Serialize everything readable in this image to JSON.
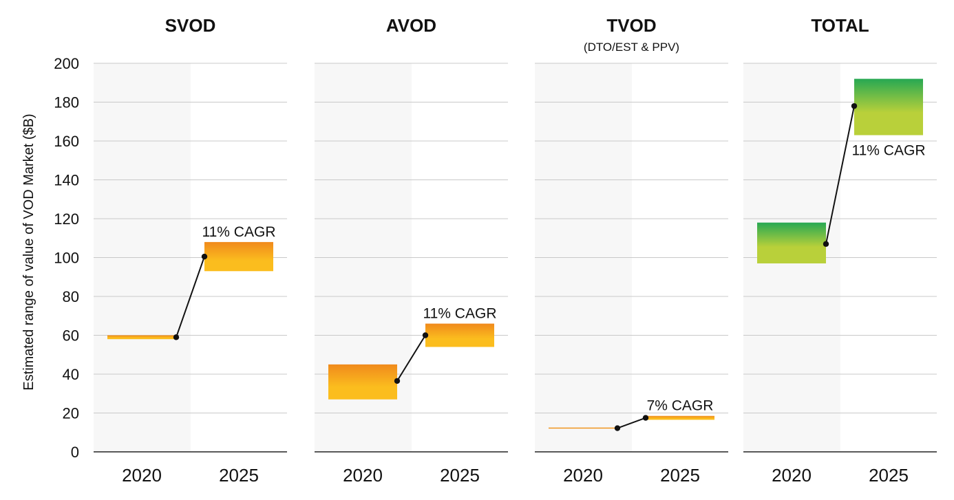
{
  "chart_data": {
    "type": "range",
    "ylabel": "Estimated range of value of VOD Market ($B)",
    "ylim": [
      0,
      200
    ],
    "yticks": [
      "0",
      "20",
      "40",
      "60",
      "80",
      "100",
      "120",
      "140",
      "160",
      "180",
      "200"
    ],
    "grid": true,
    "categories": [
      "2020",
      "2025"
    ],
    "colors": {
      "orange_top": "#f08a1c",
      "orange_bottom": "#fbbd1e",
      "green_top": "#27a853",
      "green_bottom": "#b9d03a",
      "tvod_line": "#f0941c",
      "shade": "#f7f7f7",
      "grid": "#c8c8c8",
      "connector": "#111111"
    },
    "panels": [
      {
        "title": "SVOD",
        "subtitle": "",
        "palette": "orange",
        "ranges": [
          {
            "year": "2020",
            "low": 58,
            "high": 60,
            "point": 59
          },
          {
            "year": "2025",
            "low": 93,
            "high": 108,
            "point": 100.5
          }
        ],
        "cagr_label": "11% CAGR",
        "cagr_position": "above"
      },
      {
        "title": "AVOD",
        "subtitle": "",
        "palette": "orange",
        "ranges": [
          {
            "year": "2020",
            "low": 27,
            "high": 45,
            "point": 36.5
          },
          {
            "year": "2025",
            "low": 54,
            "high": 66,
            "point": 60
          }
        ],
        "cagr_label": "11% CAGR",
        "cagr_position": "above"
      },
      {
        "title": "TVOD",
        "subtitle": "(DTO/EST & PPV)",
        "palette": "orange",
        "ranges": [
          {
            "year": "2020",
            "low": 12,
            "high": 12.5,
            "point": 12.2
          },
          {
            "year": "2025",
            "low": 16.5,
            "high": 18.5,
            "point": 17.5
          }
        ],
        "cagr_label": "7% CAGR",
        "cagr_position": "above"
      },
      {
        "title": "TOTAL",
        "subtitle": "",
        "palette": "green",
        "ranges": [
          {
            "year": "2020",
            "low": 97,
            "high": 118,
            "point": 107
          },
          {
            "year": "2025",
            "low": 163,
            "high": 192,
            "point": 178
          }
        ],
        "cagr_label": "11% CAGR",
        "cagr_position": "below"
      }
    ]
  }
}
